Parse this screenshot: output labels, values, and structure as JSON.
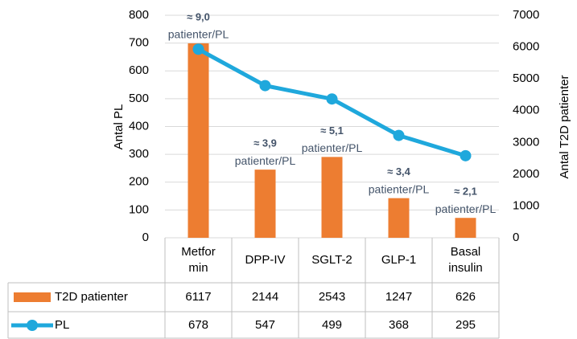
{
  "chart_data": {
    "type": "bar-line",
    "categories": [
      "Metformin",
      "DPP-IV",
      "SGLT-2",
      "GLP-1",
      "Basal insulin"
    ],
    "series": [
      {
        "name": "T2D patienter",
        "type": "bar",
        "axis": "y2",
        "color": "#ED7D31",
        "values": [
          6117,
          2144,
          2543,
          1247,
          626
        ]
      },
      {
        "name": "PL",
        "type": "line",
        "axis": "y",
        "color": "#1FA8DC",
        "values": [
          678,
          547,
          499,
          368,
          295
        ]
      }
    ],
    "ylabel": "Antal PL",
    "y2label": "Antal T2D patienter",
    "ylim": [
      0,
      800
    ],
    "yticks": [
      0,
      100,
      200,
      300,
      400,
      500,
      600,
      700,
      800
    ],
    "y2lim": [
      0,
      7000
    ],
    "y2ticks": [
      0,
      1000,
      2000,
      3000,
      4000,
      5000,
      6000,
      7000
    ],
    "grid": true,
    "annotations": [
      {
        "bold": "≈ 9,0",
        "text": "patienter/PL"
      },
      {
        "bold": "≈ 3,9",
        "text": "patienter/PL"
      },
      {
        "bold": "≈ 5,1",
        "text": "patienter/PL"
      },
      {
        "bold": "≈ 3,4",
        "text": "patienter/PL"
      },
      {
        "bold": "≈ 2,1",
        "text": "patienter/PL"
      }
    ]
  }
}
